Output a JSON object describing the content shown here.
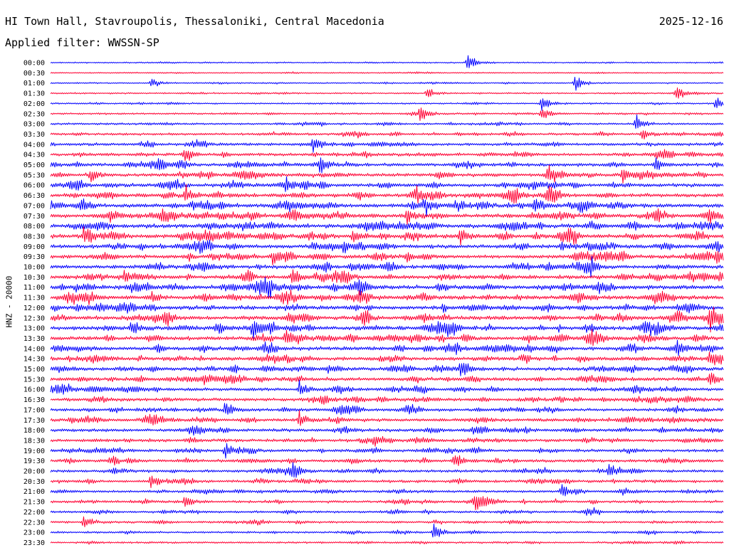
{
  "header": {
    "station": "HI Town Hall, Stavroupolis, Thessaloniki, Central Macedonia",
    "date": "2025-12-16",
    "filter": "Applied filter: WWSSN-SP"
  },
  "chart_data": {
    "type": "line",
    "title": "HI Town Hall, Stavroupolis, Thessaloniki, Central Macedonia",
    "subtitle": "Applied filter: WWSSN-SP",
    "date": "2025-12-16",
    "ylabel": "HNZ - 20000",
    "xlabel": "",
    "row_labels": [
      "00:00",
      "00:30",
      "01:00",
      "01:30",
      "02:00",
      "02:30",
      "03:00",
      "03:30",
      "04:00",
      "04:30",
      "05:00",
      "05:30",
      "06:00",
      "06:30",
      "07:00",
      "07:30",
      "08:00",
      "08:30",
      "09:00",
      "09:30",
      "10:00",
      "10:30",
      "11:00",
      "11:30",
      "12:00",
      "12:30",
      "13:00",
      "13:30",
      "14:00",
      "14:30",
      "15:00",
      "15:30",
      "16:00",
      "16:30",
      "17:00",
      "17:30",
      "18:00",
      "18:30",
      "19:00",
      "19:30",
      "20:00",
      "20:30",
      "21:00",
      "21:30",
      "22:00",
      "22:30",
      "23:00",
      "23:30"
    ],
    "series_colors": [
      "#0000ff",
      "#ff0033"
    ],
    "color_alternation": "even rows blue, odd rows red",
    "noise_level": [
      0.1,
      0.1,
      0.12,
      0.15,
      0.18,
      0.22,
      0.3,
      0.4,
      0.5,
      0.55,
      0.6,
      0.65,
      0.7,
      0.75,
      0.8,
      0.85,
      0.85,
      0.85,
      0.8,
      0.75,
      0.75,
      0.8,
      0.85,
      0.85,
      0.8,
      0.8,
      0.8,
      0.78,
      0.75,
      0.72,
      0.7,
      0.7,
      0.65,
      0.6,
      0.6,
      0.6,
      0.58,
      0.55,
      0.55,
      0.55,
      0.5,
      0.48,
      0.45,
      0.42,
      0.38,
      0.35,
      0.3,
      0.25
    ],
    "events": [
      {
        "row": 0,
        "x": 0.62,
        "amp": 1.0
      },
      {
        "row": 2,
        "x": 0.15,
        "amp": 0.6
      },
      {
        "row": 2,
        "x": 0.78,
        "amp": 1.0
      },
      {
        "row": 3,
        "x": 0.56,
        "amp": 0.6
      },
      {
        "row": 3,
        "x": 0.93,
        "amp": 1.0
      },
      {
        "row": 4,
        "x": 0.73,
        "amp": 0.9
      },
      {
        "row": 4,
        "x": 0.99,
        "amp": 0.9
      },
      {
        "row": 5,
        "x": 0.55,
        "amp": 1.0
      },
      {
        "row": 5,
        "x": 0.73,
        "amp": 1.0
      },
      {
        "row": 6,
        "x": 0.87,
        "amp": 1.0
      },
      {
        "row": 7,
        "x": 0.88,
        "amp": 0.8
      },
      {
        "row": 8,
        "x": 0.39,
        "amp": 1.0
      },
      {
        "row": 9,
        "x": 0.2,
        "amp": 0.8
      },
      {
        "row": 10,
        "x": 0.16,
        "amp": 0.8
      },
      {
        "row": 10,
        "x": 0.4,
        "amp": 0.9
      },
      {
        "row": 10,
        "x": 0.9,
        "amp": 0.9
      },
      {
        "row": 11,
        "x": 0.06,
        "amp": 0.8
      },
      {
        "row": 11,
        "x": 0.74,
        "amp": 0.9
      },
      {
        "row": 11,
        "x": 0.85,
        "amp": 0.9
      },
      {
        "row": 12,
        "x": 0.35,
        "amp": 0.8
      },
      {
        "row": 13,
        "x": 0.2,
        "amp": 1.0
      },
      {
        "row": 13,
        "x": 0.74,
        "amp": 1.0
      },
      {
        "row": 14,
        "x": 0.35,
        "amp": 1.0
      },
      {
        "row": 14,
        "x": 0.72,
        "amp": 1.0
      },
      {
        "row": 15,
        "x": 0.53,
        "amp": 0.8
      },
      {
        "row": 15,
        "x": 0.9,
        "amp": 1.0
      },
      {
        "row": 15,
        "x": 0.98,
        "amp": 1.0
      },
      {
        "row": 17,
        "x": 0.05,
        "amp": 0.9
      },
      {
        "row": 17,
        "x": 0.45,
        "amp": 0.9
      },
      {
        "row": 17,
        "x": 0.61,
        "amp": 0.9
      },
      {
        "row": 19,
        "x": 0.33,
        "amp": 0.8
      },
      {
        "row": 19,
        "x": 0.99,
        "amp": 1.0
      },
      {
        "row": 21,
        "x": 0.11,
        "amp": 0.9
      },
      {
        "row": 21,
        "x": 0.36,
        "amp": 1.0
      },
      {
        "row": 22,
        "x": 0.46,
        "amp": 1.0
      },
      {
        "row": 23,
        "x": 0.46,
        "amp": 0.9
      },
      {
        "row": 25,
        "x": 0.17,
        "amp": 1.0
      },
      {
        "row": 25,
        "x": 0.98,
        "amp": 1.0
      },
      {
        "row": 26,
        "x": 0.12,
        "amp": 0.9
      },
      {
        "row": 26,
        "x": 0.3,
        "amp": 0.9
      },
      {
        "row": 27,
        "x": 0.35,
        "amp": 1.0
      },
      {
        "row": 27,
        "x": 0.8,
        "amp": 1.0
      },
      {
        "row": 28,
        "x": 0.93,
        "amp": 0.8
      },
      {
        "row": 29,
        "x": 0.98,
        "amp": 0.9
      },
      {
        "row": 30,
        "x": 0.61,
        "amp": 1.0
      },
      {
        "row": 31,
        "x": 0.98,
        "amp": 1.0
      },
      {
        "row": 32,
        "x": 0.37,
        "amp": 0.9
      },
      {
        "row": 34,
        "x": 0.26,
        "amp": 1.0
      },
      {
        "row": 35,
        "x": 0.37,
        "amp": 1.0
      },
      {
        "row": 38,
        "x": 0.26,
        "amp": 1.0
      },
      {
        "row": 39,
        "x": 0.6,
        "amp": 0.9
      },
      {
        "row": 40,
        "x": 0.36,
        "amp": 1.0
      },
      {
        "row": 40,
        "x": 0.83,
        "amp": 1.0
      },
      {
        "row": 41,
        "x": 0.15,
        "amp": 0.8
      },
      {
        "row": 42,
        "x": 0.76,
        "amp": 1.0
      },
      {
        "row": 43,
        "x": 0.2,
        "amp": 0.8
      },
      {
        "row": 43,
        "x": 0.63,
        "amp": 0.9
      },
      {
        "row": 45,
        "x": 0.05,
        "amp": 0.8
      },
      {
        "row": 46,
        "x": 0.57,
        "amp": 1.0
      }
    ]
  }
}
